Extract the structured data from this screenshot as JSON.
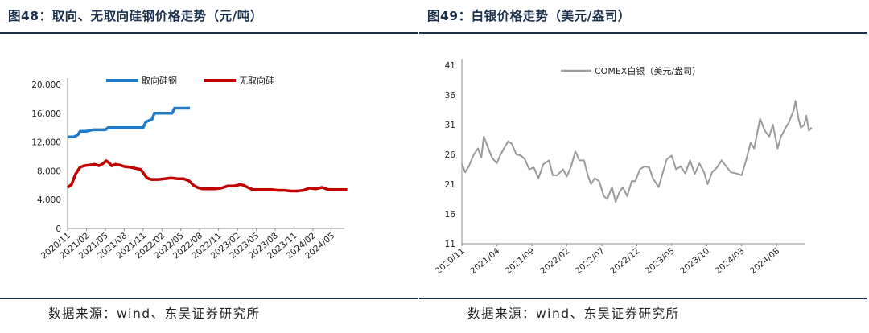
{
  "left": {
    "title": "图48：取向、无取向硅钢价格走势（元/吨）",
    "source": "数据来源：wind、东吴证券研究所"
  },
  "right": {
    "title": "图49：白银价格走势（美元/盎司）",
    "source": "数据来源：wind、东吴证券研究所"
  },
  "chart_data": [
    {
      "type": "line",
      "title": "",
      "xlabel": "",
      "ylabel": "",
      "ylim": [
        0,
        20000
      ],
      "yticks": [
        "0",
        "4,000",
        "8,000",
        "12,000",
        "16,000",
        "20,000"
      ],
      "x_range": [
        "2020-11",
        "2024-07"
      ],
      "x_tick_labels": [
        "2020/11",
        "2021/02",
        "2021/05",
        "2021/08",
        "2021/11",
        "2022/02",
        "2022/05",
        "2022/08",
        "2022/11",
        "2023/02",
        "2023/05",
        "2023/08",
        "2023/11",
        "2024/02",
        "2024/05"
      ],
      "legend_position": "top",
      "grid": false,
      "series": [
        {
          "name": "取向硅钢",
          "color": "#1f7bc8",
          "points": [
            [
              "2020-11-01",
              12700
            ],
            [
              "2020-12-01",
              12700
            ],
            [
              "2020-12-20",
              13000
            ],
            [
              "2021-01-01",
              13500
            ],
            [
              "2021-02-01",
              13500
            ],
            [
              "2021-03-01",
              13700
            ],
            [
              "2021-04-01",
              13700
            ],
            [
              "2021-05-01",
              13700
            ],
            [
              "2021-05-15",
              14000
            ],
            [
              "2021-06-01",
              14000
            ],
            [
              "2021-07-01",
              14000
            ],
            [
              "2021-08-01",
              14000
            ],
            [
              "2021-09-01",
              14000
            ],
            [
              "2021-10-01",
              14000
            ],
            [
              "2021-11-01",
              14000
            ],
            [
              "2021-11-15",
              14800
            ],
            [
              "2021-12-01",
              15000
            ],
            [
              "2021-12-15",
              15200
            ],
            [
              "2021-12-25",
              16000
            ],
            [
              "2022-01-15",
              16000
            ],
            [
              "2022-02-15",
              16000
            ],
            [
              "2022-03-20",
              16000
            ],
            [
              "2022-04-01",
              16700
            ],
            [
              "2022-05-01",
              16700
            ],
            [
              "2022-06-15",
              16700
            ]
          ]
        },
        {
          "name": "无取向硅",
          "color": "#c00000",
          "points": [
            [
              "2020-11-01",
              5700
            ],
            [
              "2020-11-20",
              6100
            ],
            [
              "2020-12-10",
              7600
            ],
            [
              "2021-01-01",
              8500
            ],
            [
              "2021-01-20",
              8700
            ],
            [
              "2021-02-15",
              8800
            ],
            [
              "2021-03-10",
              8900
            ],
            [
              "2021-04-01",
              8700
            ],
            [
              "2021-04-20",
              9000
            ],
            [
              "2021-05-05",
              9400
            ],
            [
              "2021-05-20",
              9100
            ],
            [
              "2021-06-01",
              8700
            ],
            [
              "2021-06-20",
              8900
            ],
            [
              "2021-07-10",
              8800
            ],
            [
              "2021-08-01",
              8600
            ],
            [
              "2021-09-01",
              8500
            ],
            [
              "2021-10-01",
              8300
            ],
            [
              "2021-10-20",
              8200
            ],
            [
              "2021-11-05",
              7600
            ],
            [
              "2021-11-20",
              7000
            ],
            [
              "2021-12-10",
              6800
            ],
            [
              "2022-01-15",
              6800
            ],
            [
              "2022-02-15",
              6900
            ],
            [
              "2022-03-15",
              7000
            ],
            [
              "2022-04-15",
              6900
            ],
            [
              "2022-05-15",
              6900
            ],
            [
              "2022-06-10",
              6600
            ],
            [
              "2022-07-01",
              6000
            ],
            [
              "2022-07-20",
              5700
            ],
            [
              "2022-08-15",
              5500
            ],
            [
              "2022-09-15",
              5500
            ],
            [
              "2022-10-15",
              5500
            ],
            [
              "2022-11-15",
              5600
            ],
            [
              "2022-12-15",
              5900
            ],
            [
              "2023-01-15",
              5900
            ],
            [
              "2023-02-15",
              6100
            ],
            [
              "2023-03-01",
              6000
            ],
            [
              "2023-03-20",
              5700
            ],
            [
              "2023-04-15",
              5400
            ],
            [
              "2023-05-15",
              5400
            ],
            [
              "2023-06-15",
              5400
            ],
            [
              "2023-07-15",
              5400
            ],
            [
              "2023-08-15",
              5300
            ],
            [
              "2023-09-15",
              5300
            ],
            [
              "2023-10-15",
              5200
            ],
            [
              "2023-11-15",
              5200
            ],
            [
              "2023-12-15",
              5300
            ],
            [
              "2024-01-15",
              5600
            ],
            [
              "2024-02-15",
              5500
            ],
            [
              "2024-03-15",
              5700
            ],
            [
              "2024-04-15",
              5400
            ],
            [
              "2024-05-15",
              5400
            ],
            [
              "2024-06-15",
              5400
            ],
            [
              "2024-07-15",
              5400
            ]
          ]
        }
      ]
    },
    {
      "type": "line",
      "title": "",
      "xlabel": "",
      "ylabel": "",
      "ylim": [
        11,
        41
      ],
      "yticks": [
        "11",
        "16",
        "21",
        "26",
        "31",
        "36",
        "41"
      ],
      "x_range": [
        "2020-11",
        "2024-12"
      ],
      "x_tick_labels": [
        "2020/11",
        "2021/04",
        "2021/09",
        "2022/02",
        "2022/07",
        "2022/12",
        "2023/05",
        "2023/10",
        "2024/03",
        "2024/08"
      ],
      "legend_position": "top",
      "grid": false,
      "series": [
        {
          "name": "COMEX白银（美元/盎司）",
          "color": "#9a9a9a",
          "points": [
            [
              "2020-11-01",
              24.5
            ],
            [
              "2020-11-15",
              23.0
            ],
            [
              "2020-12-01",
              24.0
            ],
            [
              "2020-12-20",
              25.8
            ],
            [
              "2021-01-10",
              27.0
            ],
            [
              "2021-01-25",
              25.5
            ],
            [
              "2021-02-05",
              29.0
            ],
            [
              "2021-02-20",
              27.5
            ],
            [
              "2021-03-10",
              25.5
            ],
            [
              "2021-03-31",
              24.5
            ],
            [
              "2021-04-15",
              25.8
            ],
            [
              "2021-05-01",
              27.0
            ],
            [
              "2021-05-20",
              28.2
            ],
            [
              "2021-06-05",
              27.8
            ],
            [
              "2021-06-25",
              26.0
            ],
            [
              "2021-07-15",
              25.8
            ],
            [
              "2021-08-01",
              25.2
            ],
            [
              "2021-08-20",
              23.5
            ],
            [
              "2021-09-10",
              23.8
            ],
            [
              "2021-09-30",
              22.0
            ],
            [
              "2021-10-20",
              24.3
            ],
            [
              "2021-11-15",
              25.0
            ],
            [
              "2021-12-01",
              22.5
            ],
            [
              "2021-12-20",
              22.5
            ],
            [
              "2022-01-15",
              23.5
            ],
            [
              "2022-02-01",
              22.3
            ],
            [
              "2022-02-20",
              24.0
            ],
            [
              "2022-03-08",
              26.5
            ],
            [
              "2022-03-25",
              25.0
            ],
            [
              "2022-04-15",
              25.0
            ],
            [
              "2022-05-01",
              22.5
            ],
            [
              "2022-05-15",
              21.0
            ],
            [
              "2022-06-01",
              22.0
            ],
            [
              "2022-06-20",
              21.5
            ],
            [
              "2022-07-10",
              19.0
            ],
            [
              "2022-07-25",
              18.5
            ],
            [
              "2022-08-15",
              20.5
            ],
            [
              "2022-08-31",
              18.0
            ],
            [
              "2022-09-15",
              19.5
            ],
            [
              "2022-10-01",
              20.5
            ],
            [
              "2022-10-20",
              19.0
            ],
            [
              "2022-11-10",
              21.5
            ],
            [
              "2022-11-25",
              21.5
            ],
            [
              "2022-12-15",
              23.5
            ],
            [
              "2023-01-05",
              24.0
            ],
            [
              "2023-01-25",
              23.8
            ],
            [
              "2023-02-10",
              22.0
            ],
            [
              "2023-03-05",
              20.5
            ],
            [
              "2023-03-20",
              22.5
            ],
            [
              "2023-04-10",
              25.2
            ],
            [
              "2023-05-01",
              25.8
            ],
            [
              "2023-05-20",
              23.5
            ],
            [
              "2023-06-10",
              24.0
            ],
            [
              "2023-06-30",
              22.8
            ],
            [
              "2023-07-20",
              25.0
            ],
            [
              "2023-08-10",
              22.7
            ],
            [
              "2023-08-30",
              24.5
            ],
            [
              "2023-09-20",
              23.0
            ],
            [
              "2023-10-05",
              21.0
            ],
            [
              "2023-10-25",
              23.0
            ],
            [
              "2023-11-15",
              23.8
            ],
            [
              "2023-12-05",
              25.0
            ],
            [
              "2023-12-25",
              24.0
            ],
            [
              "2024-01-15",
              23.0
            ],
            [
              "2024-02-10",
              22.8
            ],
            [
              "2024-03-01",
              22.5
            ],
            [
              "2024-03-20",
              25.0
            ],
            [
              "2024-04-10",
              28.0
            ],
            [
              "2024-04-25",
              27.0
            ],
            [
              "2024-05-20",
              32.0
            ],
            [
              "2024-06-10",
              30.0
            ],
            [
              "2024-06-30",
              29.0
            ],
            [
              "2024-07-15",
              31.0
            ],
            [
              "2024-08-05",
              27.0
            ],
            [
              "2024-08-20",
              29.0
            ],
            [
              "2024-09-10",
              30.5
            ],
            [
              "2024-09-25",
              31.5
            ],
            [
              "2024-10-15",
              33.5
            ],
            [
              "2024-10-22",
              35.0
            ],
            [
              "2024-11-05",
              32.0
            ],
            [
              "2024-11-15",
              30.5
            ],
            [
              "2024-11-30",
              31.0
            ],
            [
              "2024-12-08",
              32.5
            ],
            [
              "2024-12-20",
              30.0
            ],
            [
              "2024-12-31",
              30.5
            ]
          ]
        }
      ]
    }
  ]
}
